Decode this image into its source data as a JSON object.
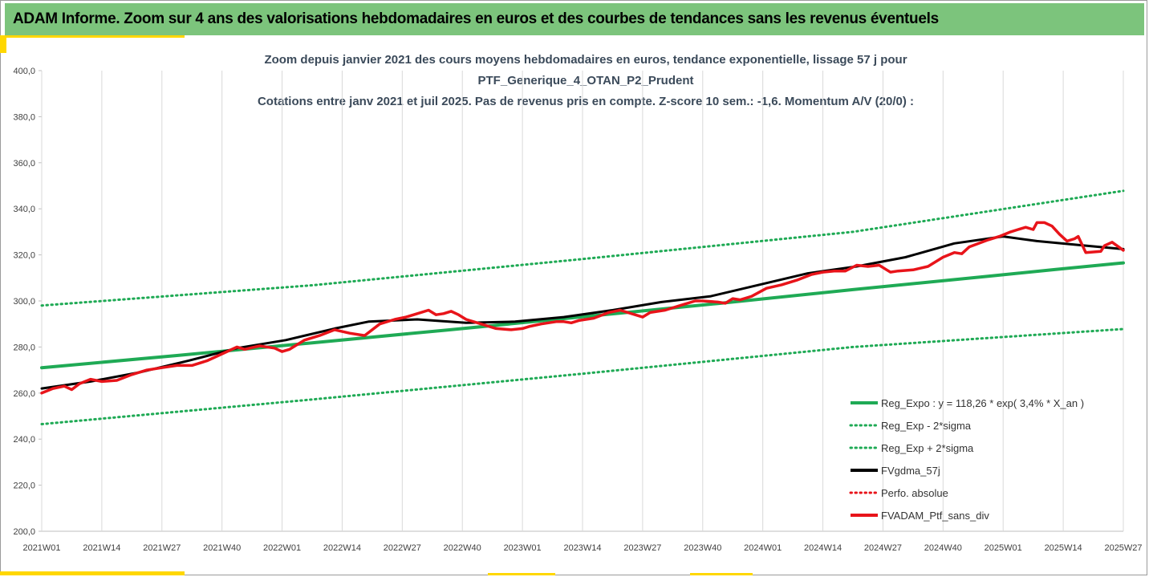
{
  "header": {
    "title": "ADAM Informe. Zoom sur 4 ans des valorisations hebdomadaires en euros et des courbes de tendances sans les revenus éventuels"
  },
  "chart_data": {
    "type": "line",
    "title_lines": [
      "Zoom depuis janvier 2021 des cours moyens hebdomadaires  en euros, tendance exponentielle, lissage 57 j pour",
      "PTF_Generique_4_OTAN_P2_Prudent",
      "Cotations entre janv 2021 et juil 2025. Pas de revenus pris en compte. Z-score 10 sem.: -1,6. Momentum A/V (20/0) :"
    ],
    "xlabel": "",
    "ylabel": "",
    "ylim": [
      200,
      400
    ],
    "y_ticks": [
      "200,0",
      "220,0",
      "240,0",
      "260,0",
      "280,0",
      "300,0",
      "320,0",
      "340,0",
      "360,0",
      "380,0",
      "400,0"
    ],
    "x_ticks": [
      "2021W01",
      "2021W14",
      "2021W27",
      "2021W40",
      "2022W01",
      "2022W14",
      "2022W27",
      "2022W40",
      "2023W01",
      "2023W14",
      "2023W27",
      "2023W40",
      "2024W01",
      "2024W14",
      "2024W27",
      "2024W40",
      "2025W01",
      "2025W14",
      "2025W27"
    ],
    "grid": "vertical",
    "legend_position": "bottom-right",
    "colors": {
      "reg": "#1faa55",
      "smooth": "#000000",
      "price": "#e8141a",
      "perfo": "#e8141a",
      "banner": "#7cc47c",
      "accent": "#ffd700"
    },
    "series": [
      {
        "name": "Reg_Expo : y = 118,26 * exp( 3,4% *  X_an )",
        "style": "solid",
        "color": "#1faa55",
        "points": [
          [
            0,
            271.0
          ],
          [
            36,
            276.3
          ],
          [
            72,
            281.8
          ],
          [
            108,
            287.4
          ],
          [
            144,
            293.1
          ],
          [
            180,
            298.9
          ],
          [
            216,
            304.9
          ],
          [
            252,
            310.7
          ],
          [
            270,
            313.7
          ],
          [
            288,
            316.5
          ]
        ]
      },
      {
        "name": "Reg_Exp - 2*sigma",
        "style": "dotted",
        "color": "#1faa55",
        "points": [
          [
            0,
            246.5
          ],
          [
            72,
            257.2
          ],
          [
            144,
            268.4
          ],
          [
            216,
            280.0
          ],
          [
            288,
            287.8
          ]
        ]
      },
      {
        "name": "Reg_Exp + 2*sigma",
        "style": "dotted",
        "color": "#1faa55",
        "points": [
          [
            0,
            298.0
          ],
          [
            72,
            306.8
          ],
          [
            144,
            318.2
          ],
          [
            216,
            330.0
          ],
          [
            288,
            347.8
          ]
        ]
      },
      {
        "name": "FVgdma_57j",
        "style": "solid",
        "color": "#000000",
        "points": [
          [
            0,
            262
          ],
          [
            13,
            265
          ],
          [
            26,
            269
          ],
          [
            39,
            274
          ],
          [
            52,
            279.5
          ],
          [
            65,
            283
          ],
          [
            78,
            288
          ],
          [
            87,
            291
          ],
          [
            100,
            292
          ],
          [
            113,
            290.5
          ],
          [
            126,
            291
          ],
          [
            139,
            293
          ],
          [
            152,
            296
          ],
          [
            165,
            299.5
          ],
          [
            178,
            302
          ],
          [
            191,
            307
          ],
          [
            204,
            312
          ],
          [
            217,
            315
          ],
          [
            230,
            319
          ],
          [
            243,
            325
          ],
          [
            256,
            328
          ],
          [
            265,
            326
          ],
          [
            278,
            324
          ],
          [
            288,
            322.5
          ]
        ]
      },
      {
        "name": "Perfo. absolue",
        "style": "dotted",
        "color": "#e8141a",
        "points": []
      },
      {
        "name": "FVADAM_Ptf_sans_div",
        "style": "solid",
        "color": "#e8141a",
        "points": [
          [
            0,
            260
          ],
          [
            3,
            262
          ],
          [
            6,
            263
          ],
          [
            8,
            261.5
          ],
          [
            10,
            264
          ],
          [
            13,
            266
          ],
          [
            16,
            265
          ],
          [
            20,
            265.5
          ],
          [
            24,
            268
          ],
          [
            28,
            270
          ],
          [
            32,
            271
          ],
          [
            36,
            272
          ],
          [
            40,
            272
          ],
          [
            44,
            274
          ],
          [
            48,
            277
          ],
          [
            52,
            280
          ],
          [
            54,
            279
          ],
          [
            58,
            280.5
          ],
          [
            62,
            279.5
          ],
          [
            64,
            278
          ],
          [
            66,
            279
          ],
          [
            70,
            283
          ],
          [
            74,
            285
          ],
          [
            78,
            287.5
          ],
          [
            82,
            286
          ],
          [
            86,
            285
          ],
          [
            90,
            290
          ],
          [
            94,
            292
          ],
          [
            97,
            293
          ],
          [
            100,
            294.5
          ],
          [
            103,
            296
          ],
          [
            105,
            294
          ],
          [
            107,
            294.5
          ],
          [
            109,
            295.5
          ],
          [
            111,
            294
          ],
          [
            113,
            292
          ],
          [
            117,
            290
          ],
          [
            121,
            288
          ],
          [
            125,
            287.5
          ],
          [
            128,
            288
          ],
          [
            130,
            289
          ],
          [
            133,
            290
          ],
          [
            137,
            291
          ],
          [
            139,
            291
          ],
          [
            141,
            290.5
          ],
          [
            143,
            291.5
          ],
          [
            147,
            292.5
          ],
          [
            151,
            295
          ],
          [
            154,
            296
          ],
          [
            158,
            294
          ],
          [
            160,
            293
          ],
          [
            162,
            295
          ],
          [
            166,
            296
          ],
          [
            170,
            298
          ],
          [
            174,
            300
          ],
          [
            176,
            300
          ],
          [
            180,
            299.5
          ],
          [
            182,
            299
          ],
          [
            184,
            301
          ],
          [
            186,
            300.5
          ],
          [
            189,
            302
          ],
          [
            193,
            305.5
          ],
          [
            197,
            307
          ],
          [
            201,
            309
          ],
          [
            205,
            311.5
          ],
          [
            208,
            312.5
          ],
          [
            211,
            313
          ],
          [
            214,
            313
          ],
          [
            217,
            315.5
          ],
          [
            220,
            315
          ],
          [
            223,
            315.5
          ],
          [
            225,
            313.5
          ],
          [
            226,
            312.5
          ],
          [
            228,
            313
          ],
          [
            232,
            313.5
          ],
          [
            236,
            315
          ],
          [
            240,
            319
          ],
          [
            243,
            321
          ],
          [
            245,
            320.5
          ],
          [
            247,
            323.5
          ],
          [
            252,
            326.5
          ],
          [
            255,
            328
          ],
          [
            258,
            330
          ],
          [
            260,
            331
          ],
          [
            262,
            332
          ],
          [
            264,
            331
          ],
          [
            265,
            334
          ],
          [
            267,
            334
          ],
          [
            269,
            332.5
          ],
          [
            271,
            329
          ],
          [
            273,
            326
          ],
          [
            275,
            327
          ],
          [
            276,
            328
          ],
          [
            278,
            321
          ],
          [
            282,
            321.5
          ],
          [
            283,
            324
          ],
          [
            285,
            325.5
          ],
          [
            288,
            322
          ]
        ]
      }
    ]
  }
}
